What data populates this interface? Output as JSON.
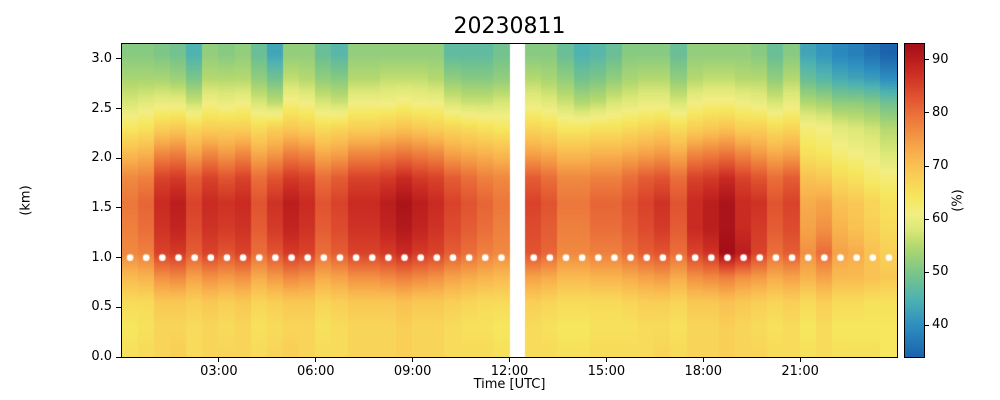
{
  "title": "20230811",
  "axes": {
    "xlabel": "Time [UTC]",
    "ylabel": "(km)",
    "x_ticks": [
      {
        "t": 3,
        "label": "03:00"
      },
      {
        "t": 6,
        "label": "06:00"
      },
      {
        "t": 9,
        "label": "09:00"
      },
      {
        "t": 12,
        "label": "12:00"
      },
      {
        "t": 15,
        "label": "15:00"
      },
      {
        "t": 18,
        "label": "18:00"
      },
      {
        "t": 21,
        "label": "21:00"
      }
    ],
    "y_ticks": [
      {
        "v": 0.0,
        "label": "0.0"
      },
      {
        "v": 0.5,
        "label": "0.5"
      },
      {
        "v": 1.0,
        "label": "1.0"
      },
      {
        "v": 1.5,
        "label": "1.5"
      },
      {
        "v": 2.0,
        "label": "2.0"
      },
      {
        "v": 2.5,
        "label": "2.5"
      },
      {
        "v": 3.0,
        "label": "3.0"
      }
    ]
  },
  "colorbar": {
    "label": "(%)",
    "ticks": [
      40,
      50,
      60,
      70,
      80,
      90
    ],
    "vmin": 34,
    "vmax": 93,
    "stops": [
      {
        "v": 34,
        "c": "#1c63ad"
      },
      {
        "v": 40,
        "c": "#2e8fc0"
      },
      {
        "v": 45,
        "c": "#4fb3b1"
      },
      {
        "v": 50,
        "c": "#7cc687"
      },
      {
        "v": 55,
        "c": "#b5d96f"
      },
      {
        "v": 58,
        "c": "#dce878"
      },
      {
        "v": 61,
        "c": "#f2ee83"
      },
      {
        "v": 64,
        "c": "#f6e75e"
      },
      {
        "v": 68,
        "c": "#f9cf56"
      },
      {
        "v": 72,
        "c": "#f9b44e"
      },
      {
        "v": 76,
        "c": "#f29243"
      },
      {
        "v": 80,
        "c": "#ea6e39"
      },
      {
        "v": 84,
        "c": "#dd4b2d"
      },
      {
        "v": 88,
        "c": "#c92a22"
      },
      {
        "v": 93,
        "c": "#a40e18"
      }
    ]
  },
  "chart_data": {
    "type": "heatmap",
    "title": "20230811",
    "xlabel": "Time [UTC]",
    "ylabel": "(km)",
    "units": "%",
    "xlim": [
      0,
      24
    ],
    "ylim": [
      0,
      3.15
    ],
    "x_hours_start": 0.25,
    "x_hours_step": 0.5,
    "x_cols": 48,
    "row_heights_km": [
      3.05,
      2.8,
      2.55,
      2.3,
      2.05,
      1.8,
      1.55,
      1.3,
      1.05,
      0.8,
      0.55,
      0.3,
      0.05
    ],
    "gap_hours": [
      12.0,
      12.5
    ],
    "marker_dots": {
      "height_km": 1.0,
      "start_h": 0.25,
      "step_h": 0.5,
      "color": "#ffffff"
    },
    "values": [
      [
        51,
        51,
        50,
        49,
        45,
        52,
        51,
        52,
        48,
        43,
        52,
        52,
        48,
        46,
        52,
        52,
        52,
        52,
        52,
        52,
        47,
        47,
        47,
        49,
        null,
        51,
        51,
        48,
        45,
        46,
        48,
        51,
        51,
        51,
        48,
        52,
        52,
        52,
        52,
        51,
        48,
        51,
        43,
        41,
        39,
        38,
        36,
        34
      ],
      [
        54,
        54,
        54,
        53,
        50,
        55,
        55,
        55,
        52,
        49,
        56,
        55,
        52,
        51,
        55,
        55,
        56,
        56,
        56,
        55,
        52,
        51,
        51,
        52,
        null,
        55,
        54,
        52,
        49,
        50,
        52,
        54,
        55,
        55,
        52,
        55,
        56,
        56,
        55,
        55,
        52,
        55,
        48,
        46,
        44,
        43,
        42,
        40
      ],
      [
        58,
        59,
        60,
        60,
        57,
        61,
        60,
        61,
        58,
        56,
        62,
        61,
        58,
        57,
        61,
        61,
        61,
        62,
        61,
        61,
        58,
        57,
        57,
        58,
        null,
        60,
        59,
        57,
        55,
        56,
        58,
        59,
        60,
        60,
        58,
        61,
        62,
        62,
        61,
        60,
        58,
        60,
        55,
        54,
        52,
        52,
        51,
        49
      ],
      [
        64,
        65,
        68,
        69,
        67,
        68,
        68,
        68,
        66,
        68,
        69,
        68,
        66,
        67,
        68,
        68,
        69,
        70,
        69,
        68,
        67,
        66,
        65,
        64,
        null,
        67,
        66,
        64,
        64,
        65,
        65,
        66,
        67,
        68,
        66,
        68,
        69,
        70,
        68,
        68,
        66,
        67,
        62,
        61,
        59,
        58,
        57,
        55
      ],
      [
        71,
        72,
        77,
        78,
        74,
        77,
        75,
        77,
        73,
        75,
        78,
        77,
        73,
        74,
        77,
        77,
        78,
        79,
        78,
        77,
        74,
        73,
        72,
        71,
        null,
        74,
        73,
        71,
        71,
        72,
        72,
        73,
        74,
        75,
        73,
        77,
        78,
        79,
        77,
        75,
        73,
        74,
        65,
        64,
        62,
        61,
        60,
        58
      ],
      [
        77,
        78,
        85,
        86,
        82,
        85,
        83,
        85,
        80,
        83,
        86,
        85,
        80,
        82,
        85,
        85,
        86,
        88,
        86,
        85,
        82,
        80,
        78,
        77,
        null,
        82,
        80,
        77,
        77,
        78,
        78,
        80,
        82,
        83,
        80,
        85,
        86,
        88,
        85,
        83,
        80,
        82,
        70,
        69,
        66,
        65,
        63,
        62
      ],
      [
        79,
        81,
        88,
        90,
        85,
        88,
        87,
        88,
        83,
        87,
        90,
        88,
        83,
        85,
        88,
        88,
        90,
        92,
        90,
        88,
        85,
        83,
        81,
        79,
        null,
        85,
        83,
        79,
        79,
        81,
        81,
        83,
        85,
        87,
        83,
        88,
        90,
        92,
        88,
        87,
        83,
        85,
        73,
        74,
        70,
        69,
        67,
        65
      ],
      [
        78,
        80,
        87,
        89,
        84,
        87,
        86,
        87,
        82,
        86,
        89,
        87,
        82,
        84,
        87,
        87,
        89,
        91,
        89,
        87,
        84,
        82,
        80,
        78,
        null,
        84,
        82,
        78,
        78,
        80,
        80,
        82,
        84,
        86,
        82,
        88,
        90,
        92,
        88,
        86,
        82,
        84,
        74,
        76,
        72,
        70,
        68,
        66
      ],
      [
        77,
        78,
        85,
        86,
        82,
        85,
        83,
        85,
        80,
        83,
        86,
        85,
        80,
        82,
        85,
        85,
        86,
        88,
        86,
        85,
        82,
        80,
        78,
        77,
        null,
        83,
        81,
        77,
        77,
        78,
        78,
        80,
        82,
        83,
        80,
        85,
        87,
        93,
        90,
        85,
        80,
        82,
        76,
        80,
        74,
        73,
        70,
        68
      ],
      [
        71,
        72,
        76,
        77,
        74,
        76,
        75,
        76,
        73,
        75,
        77,
        76,
        73,
        74,
        76,
        76,
        77,
        78,
        77,
        76,
        74,
        73,
        72,
        71,
        null,
        74,
        73,
        71,
        71,
        72,
        72,
        73,
        74,
        75,
        73,
        76,
        77,
        78,
        76,
        75,
        73,
        74,
        72,
        74,
        71,
        71,
        70,
        69
      ],
      [
        66,
        66,
        69,
        69,
        68,
        69,
        68,
        69,
        67,
        68,
        69,
        69,
        67,
        68,
        69,
        69,
        69,
        70,
        69,
        69,
        68,
        67,
        66,
        66,
        null,
        68,
        67,
        66,
        66,
        66,
        66,
        67,
        68,
        68,
        67,
        69,
        69,
        70,
        69,
        68,
        67,
        68,
        66,
        68,
        66,
        66,
        65,
        65
      ],
      [
        64,
        65,
        67,
        67,
        66,
        67,
        66,
        67,
        65,
        66,
        67,
        67,
        65,
        66,
        67,
        67,
        67,
        68,
        67,
        67,
        66,
        65,
        65,
        64,
        null,
        66,
        65,
        64,
        64,
        65,
        65,
        65,
        66,
        66,
        65,
        67,
        67,
        68,
        67,
        66,
        65,
        66,
        64,
        66,
        64,
        64,
        64,
        64
      ],
      [
        65,
        66,
        67,
        68,
        66,
        67,
        67,
        67,
        66,
        67,
        68,
        67,
        66,
        66,
        67,
        67,
        67,
        68,
        67,
        67,
        66,
        66,
        66,
        65,
        null,
        66,
        66,
        65,
        65,
        66,
        66,
        66,
        66,
        67,
        66,
        67,
        67,
        68,
        67,
        67,
        66,
        66,
        65,
        66,
        65,
        65,
        65,
        64
      ]
    ]
  }
}
